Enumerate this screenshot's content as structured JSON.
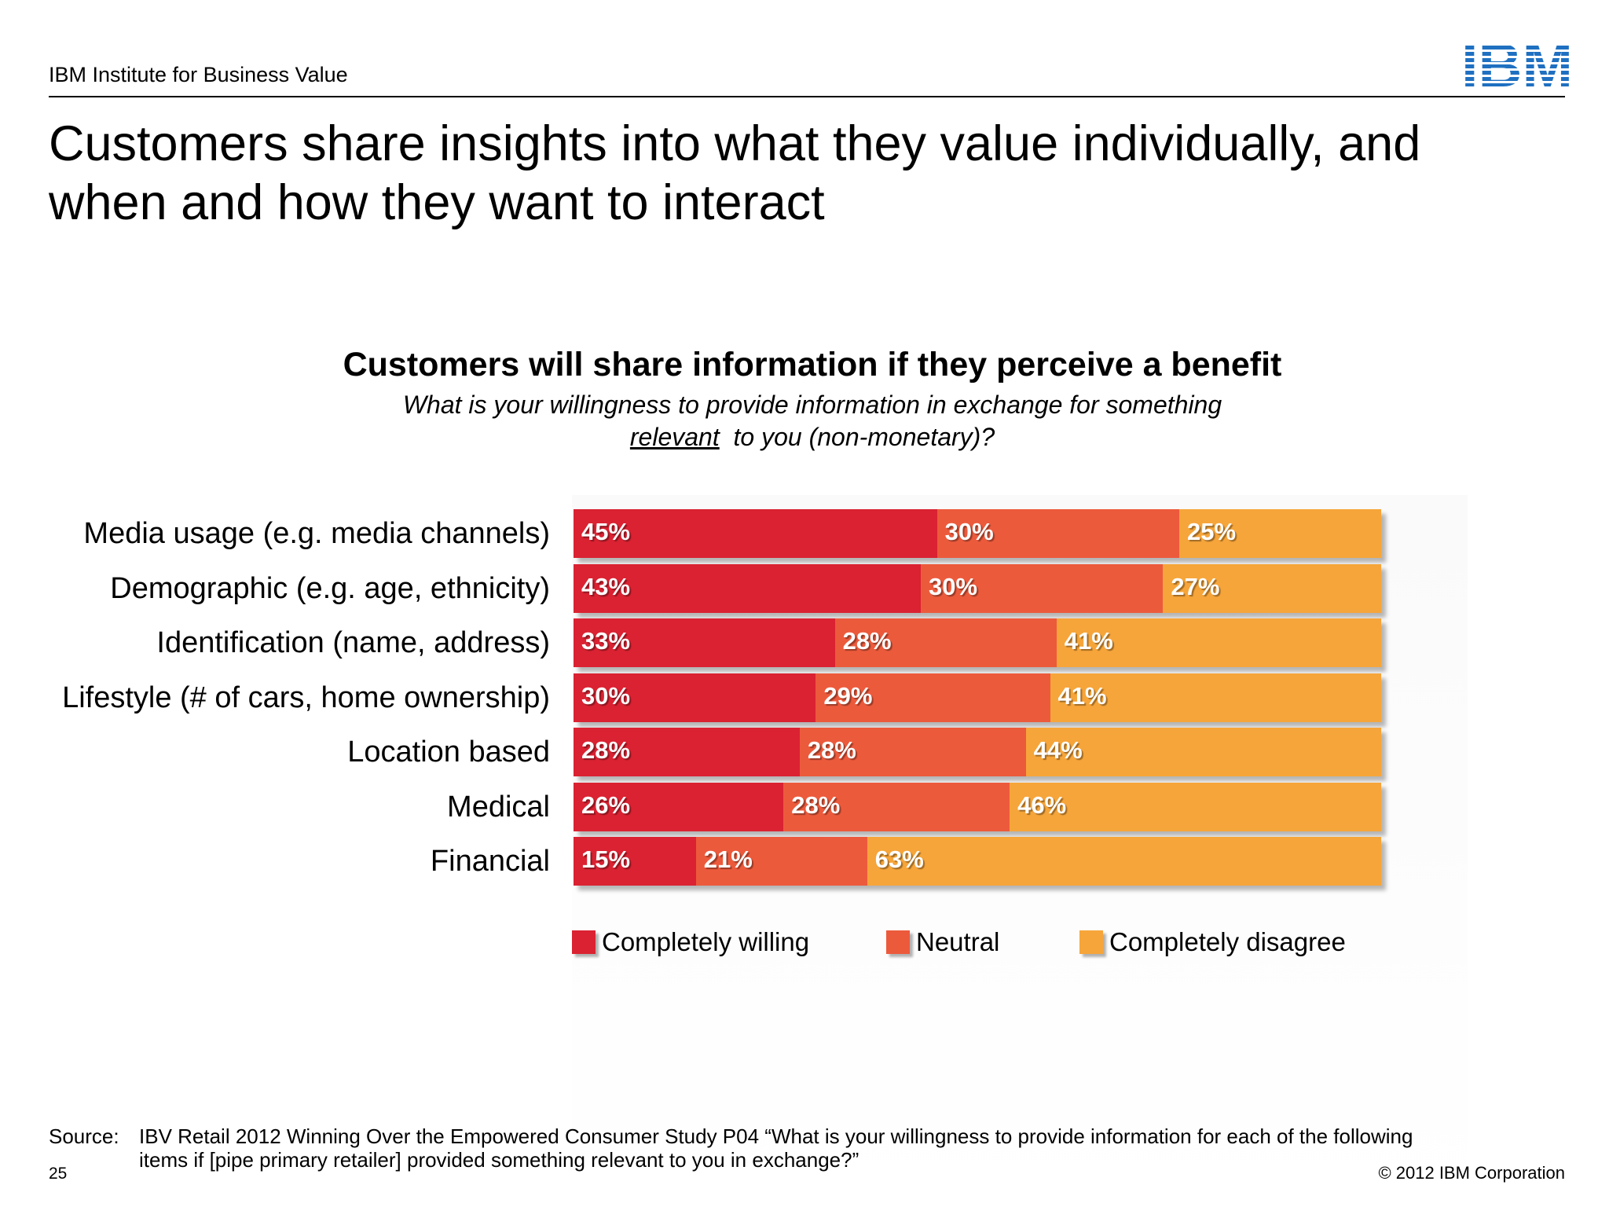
{
  "header": {
    "org": "IBM Institute for Business Value",
    "logo_text": "IBM"
  },
  "slide_title": "Customers share insights into what they value individually, and when and how they want to interact",
  "chart_data": {
    "type": "bar",
    "orientation": "horizontal",
    "stacked": true,
    "title": "Customers will share information if they perceive a benefit",
    "subtitle_line1": "What is your willingness to provide information in exchange for something",
    "subtitle_line2_underlined": "relevant",
    "subtitle_line2_rest": "to you (non-monetary)?",
    "categories": [
      "Media usage (e.g. media channels)",
      "Demographic (e.g. age, ethnicity)",
      "Identification (name, address)",
      "Lifestyle (# of cars, home ownership)",
      "Location based",
      "Medical",
      "Financial"
    ],
    "series": [
      {
        "name": "Completely willing",
        "color": "#da2232",
        "values": [
          45,
          43,
          33,
          30,
          28,
          26,
          15
        ]
      },
      {
        "name": "Neutral",
        "color": "#ec5a3c",
        "values": [
          30,
          30,
          28,
          29,
          28,
          28,
          21
        ]
      },
      {
        "name": "Completely disagree",
        "color": "#f6a53a",
        "values": [
          25,
          27,
          41,
          41,
          44,
          46,
          63
        ]
      }
    ],
    "value_suffix": "%",
    "legend_position": "bottom",
    "grid": false
  },
  "source": {
    "label": "Source:",
    "line1": "IBV Retail 2012 Winning Over the Empowered Consumer Study P04 “What is your willingness to provide information for each of the following",
    "line2": "items if [pipe primary retailer] provided something relevant to you in exchange?”"
  },
  "footer": {
    "page_number": "25",
    "copyright": "© 2012 IBM Corporation"
  }
}
